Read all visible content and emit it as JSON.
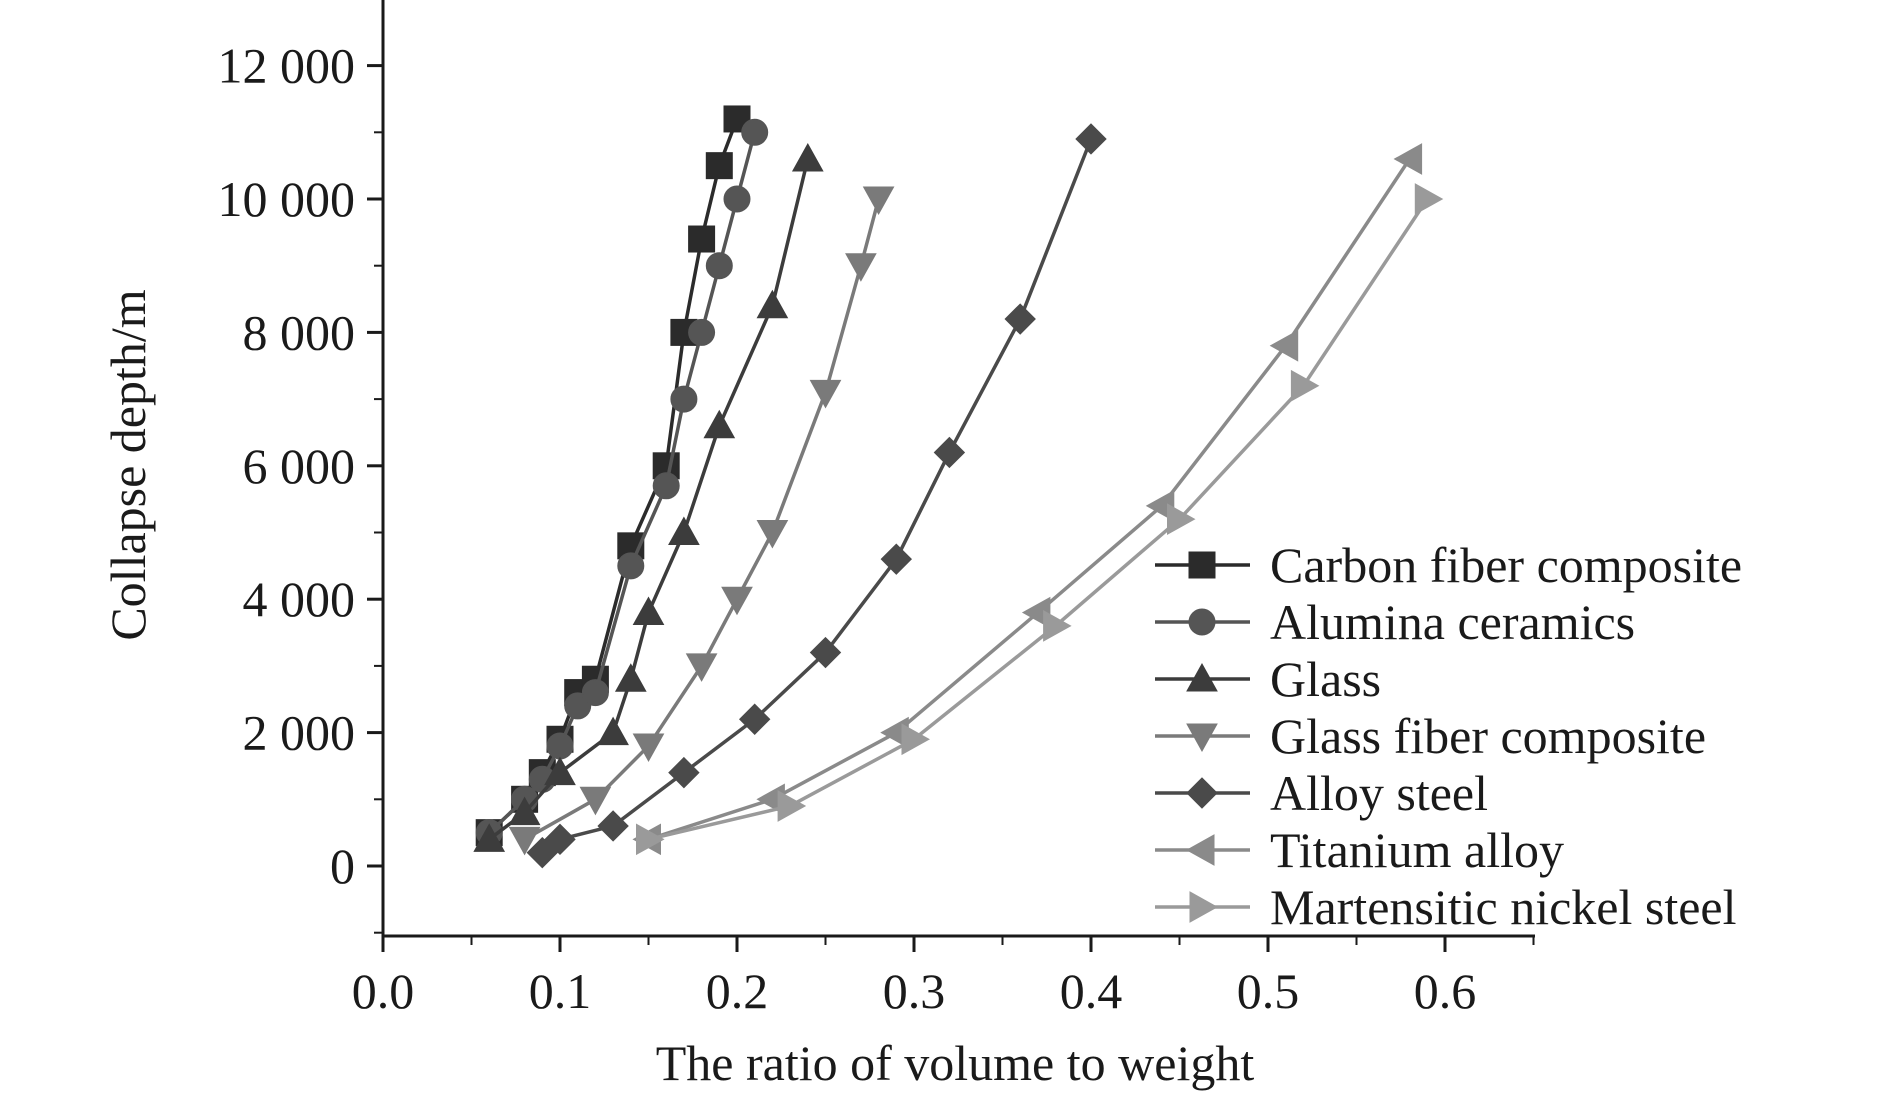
{
  "chart_data": {
    "type": "line",
    "title": "",
    "xlabel": "The ratio of volume to weight",
    "ylabel": "Collapse depth/m",
    "xlim": [
      0.0,
      0.65
    ],
    "ylim": [
      -1000,
      13000
    ],
    "x_ticks": [
      0.0,
      0.1,
      0.2,
      0.3,
      0.4,
      0.5,
      0.6
    ],
    "x_tick_labels": [
      "0.0",
      "0.1",
      "0.2",
      "0.3",
      "0.4",
      "0.5",
      "0.6"
    ],
    "y_ticks": [
      0,
      2000,
      4000,
      6000,
      8000,
      10000,
      12000
    ],
    "y_tick_labels": [
      "0",
      "2 000",
      "4 000",
      "6 000",
      "8 000",
      "10 000",
      "12 000"
    ],
    "grid": false,
    "legend_position": "bottom-right",
    "series": [
      {
        "name": "Carbon fiber composite",
        "marker": "square",
        "color": "#2b2b2b",
        "x": [
          0.06,
          0.08,
          0.09,
          0.1,
          0.11,
          0.12,
          0.14,
          0.16,
          0.17,
          0.18,
          0.19,
          0.2
        ],
        "y": [
          500,
          1000,
          1400,
          1900,
          2600,
          2800,
          4800,
          6000,
          8000,
          9400,
          10500,
          11200
        ]
      },
      {
        "name": "Alumina ceramics",
        "marker": "circle",
        "color": "#555555",
        "x": [
          0.06,
          0.08,
          0.09,
          0.1,
          0.11,
          0.12,
          0.14,
          0.16,
          0.17,
          0.18,
          0.19,
          0.2,
          0.21
        ],
        "y": [
          500,
          1000,
          1300,
          1800,
          2400,
          2600,
          4500,
          5700,
          7000,
          8000,
          9000,
          10000,
          11000
        ]
      },
      {
        "name": "Glass",
        "marker": "triangle-up",
        "color": "#3c3c3c",
        "x": [
          0.06,
          0.08,
          0.1,
          0.13,
          0.14,
          0.15,
          0.17,
          0.19,
          0.22,
          0.24
        ],
        "y": [
          400,
          800,
          1400,
          2000,
          2800,
          3800,
          5000,
          6600,
          8400,
          10600
        ]
      },
      {
        "name": "Glass fiber composite",
        "marker": "triangle-down",
        "color": "#7a7a7a",
        "x": [
          0.08,
          0.12,
          0.15,
          0.18,
          0.2,
          0.22,
          0.25,
          0.27,
          0.28
        ],
        "y": [
          400,
          1000,
          1800,
          3000,
          4000,
          5000,
          7100,
          9000,
          10000
        ]
      },
      {
        "name": "Alloy steel",
        "marker": "diamond",
        "color": "#4a4a4a",
        "x": [
          0.09,
          0.1,
          0.13,
          0.17,
          0.21,
          0.25,
          0.29,
          0.32,
          0.36,
          0.4
        ],
        "y": [
          200,
          400,
          600,
          1400,
          2200,
          3200,
          4600,
          6200,
          8200,
          10900
        ]
      },
      {
        "name": "Titanium alloy",
        "marker": "triangle-left",
        "color": "#8a8a8a",
        "x": [
          0.15,
          0.22,
          0.29,
          0.37,
          0.44,
          0.51,
          0.58
        ],
        "y": [
          400,
          1000,
          2000,
          3800,
          5400,
          7800,
          10600
        ]
      },
      {
        "name": "Martensitic nickel steel",
        "marker": "triangle-right",
        "color": "#9a9a9a",
        "x": [
          0.15,
          0.23,
          0.3,
          0.38,
          0.45,
          0.52,
          0.59
        ],
        "y": [
          400,
          900,
          1900,
          3600,
          5200,
          7200,
          10000
        ]
      }
    ]
  }
}
